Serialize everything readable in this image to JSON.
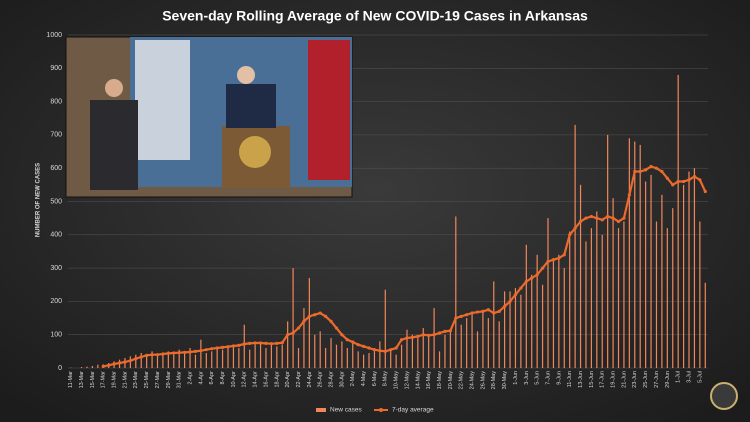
{
  "chart_data": {
    "type": "bar-line",
    "title": "Seven-day Rolling Average of New COVID-19 Cases in Arkansas",
    "y_label": "NUMBER OF NEW CASES",
    "categories": [
      "11-Mar",
      null,
      "13-Mar",
      null,
      "15-Mar",
      null,
      "17-Mar",
      null,
      "19-Mar",
      null,
      "21-Mar",
      null,
      "23-Mar",
      null,
      "25-Mar",
      null,
      "27-Mar",
      null,
      "29-Mar",
      null,
      "31-Mar",
      null,
      "2-Apr",
      null,
      "4-Apr",
      null,
      "6-Apr",
      null,
      "8-Apr",
      null,
      "10-Apr",
      null,
      "12-Apr",
      null,
      "14-Apr",
      null,
      "16-Apr",
      null,
      "18-Apr",
      null,
      "20-Apr",
      null,
      "22-Apr",
      null,
      "24-Apr",
      null,
      "26-Apr",
      null,
      "28-Apr",
      null,
      "30-Apr",
      null,
      "2-May",
      null,
      "4-May",
      null,
      "6-May",
      null,
      "8-May",
      null,
      "10-May",
      null,
      "12-May",
      null,
      "14-May",
      null,
      "16-May",
      null,
      "18-May",
      null,
      "20-May",
      null,
      "22-May",
      null,
      "24-May",
      null,
      "26-May",
      null,
      "28-May",
      null,
      "30-May",
      null,
      "1-Jun",
      null,
      "3-Jun",
      null,
      "5-Jun",
      null,
      "7-Jun",
      null,
      "9-Jun",
      null,
      "11-Jun",
      null,
      "13-Jun",
      null,
      "15-Jun",
      null,
      "17-Jun",
      null,
      "19-Jun",
      null,
      "21-Jun",
      null,
      "23-Jun",
      null,
      "25-Jun",
      null,
      "27-Jun",
      null,
      "29-Jun",
      null,
      "1-Jul",
      null,
      "3-Jul",
      null,
      "5-Jul",
      null
    ],
    "series": [
      {
        "name": "New cases",
        "color": "#f0875a",
        "values": [
          1,
          0,
          3,
          4,
          6,
          10,
          11,
          15,
          20,
          25,
          30,
          35,
          40,
          45,
          40,
          50,
          40,
          45,
          50,
          40,
          55,
          50,
          60,
          40,
          85,
          45,
          50,
          60,
          55,
          60,
          70,
          60,
          130,
          55,
          70,
          75,
          60,
          70,
          65,
          70,
          140,
          300,
          60,
          180,
          270,
          100,
          110,
          60,
          90,
          70,
          80,
          60,
          75,
          50,
          40,
          45,
          60,
          80,
          235,
          55,
          40,
          70,
          115,
          100,
          90,
          120,
          100,
          180,
          50,
          100,
          110,
          455,
          130,
          150,
          170,
          110,
          170,
          150,
          260,
          140,
          230,
          230,
          240,
          220,
          370,
          280,
          340,
          250,
          450,
          330,
          340,
          300,
          410,
          730,
          550,
          380,
          420,
          470,
          400,
          700,
          510,
          420,
          440,
          690,
          680,
          670,
          560,
          580,
          440,
          520,
          420,
          480,
          880,
          550,
          590,
          600,
          440,
          256
        ]
      },
      {
        "name": "7-day average",
        "color": "#ec6a2c",
        "values": [
          null,
          null,
          null,
          null,
          null,
          null,
          5,
          8,
          12,
          15,
          18,
          22,
          28,
          33,
          38,
          40,
          40,
          42,
          44,
          45,
          46,
          47,
          48,
          50,
          52,
          55,
          58,
          60,
          62,
          64,
          66,
          68,
          72,
          74,
          75,
          75,
          74,
          73,
          74,
          76,
          100,
          105,
          120,
          140,
          155,
          160,
          165,
          155,
          140,
          120,
          100,
          85,
          78,
          70,
          65,
          60,
          55,
          52,
          50,
          55,
          60,
          85,
          90,
          92,
          95,
          100,
          98,
          100,
          105,
          110,
          112,
          150,
          155,
          160,
          165,
          168,
          170,
          175,
          165,
          170,
          185,
          200,
          220,
          240,
          260,
          270,
          280,
          300,
          320,
          325,
          330,
          340,
          400,
          420,
          440,
          450,
          455,
          450,
          445,
          455,
          450,
          440,
          450,
          520,
          590,
          590,
          595,
          605,
          600,
          590,
          570,
          550,
          560,
          560,
          565,
          575,
          565,
          530
        ]
      }
    ],
    "ylim": [
      0,
      1000
    ],
    "yticks": [
      0,
      100,
      200,
      300,
      400,
      500,
      600,
      700,
      800,
      900,
      1000
    ],
    "grid": true,
    "legend": "bottom"
  }
}
